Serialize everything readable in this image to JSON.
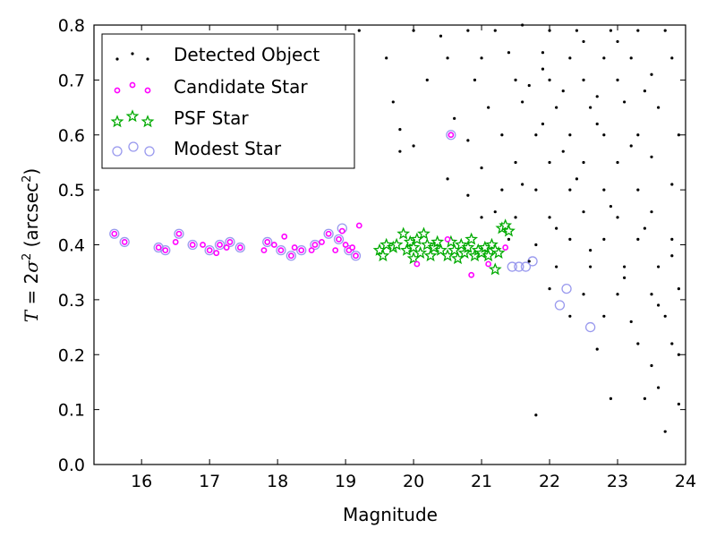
{
  "chart_data": {
    "type": "scatter",
    "xlabel": "Magnitude",
    "ylabel_parts": {
      "lhs": "T",
      "eq": " = 2",
      "sigma": "σ",
      "sup1": "2",
      "paren_open": " (arcsec",
      "sup2": "2",
      "paren_close": ")"
    },
    "xlim": [
      15.3,
      24
    ],
    "ylim": [
      0.0,
      0.8
    ],
    "xticks": [
      "16",
      "17",
      "18",
      "19",
      "20",
      "21",
      "22",
      "23",
      "24"
    ],
    "yticks": [
      "0.0",
      "0.1",
      "0.2",
      "0.3",
      "0.4",
      "0.5",
      "0.6",
      "0.7",
      "0.8"
    ],
    "legend_position": "top-left",
    "colors": {
      "detected": "#000000",
      "candidate": "#ff00ff",
      "psf": "#00aa00",
      "modest": "#9999ee"
    },
    "series": [
      {
        "name": "Detected Object",
        "marker": "dot",
        "points": [
          [
            19.2,
            0.79
          ],
          [
            20.0,
            0.79
          ],
          [
            20.4,
            0.78
          ],
          [
            20.8,
            0.79
          ],
          [
            21.2,
            0.79
          ],
          [
            21.6,
            0.8
          ],
          [
            22.0,
            0.79
          ],
          [
            22.4,
            0.79
          ],
          [
            22.9,
            0.79
          ],
          [
            23.3,
            0.79
          ],
          [
            23.7,
            0.79
          ],
          [
            19.6,
            0.74
          ],
          [
            20.5,
            0.74
          ],
          [
            21.0,
            0.74
          ],
          [
            21.4,
            0.75
          ],
          [
            21.9,
            0.75
          ],
          [
            22.3,
            0.74
          ],
          [
            22.8,
            0.74
          ],
          [
            23.2,
            0.74
          ],
          [
            23.8,
            0.74
          ],
          [
            19.7,
            0.66
          ],
          [
            20.2,
            0.7
          ],
          [
            20.9,
            0.7
          ],
          [
            21.5,
            0.7
          ],
          [
            22.0,
            0.7
          ],
          [
            22.5,
            0.7
          ],
          [
            23.0,
            0.7
          ],
          [
            23.5,
            0.71
          ],
          [
            19.8,
            0.61
          ],
          [
            20.0,
            0.58
          ],
          [
            20.6,
            0.63
          ],
          [
            21.1,
            0.65
          ],
          [
            21.6,
            0.66
          ],
          [
            22.1,
            0.65
          ],
          [
            22.6,
            0.65
          ],
          [
            23.1,
            0.66
          ],
          [
            23.6,
            0.65
          ],
          [
            19.8,
            0.57
          ],
          [
            20.8,
            0.59
          ],
          [
            21.3,
            0.6
          ],
          [
            21.8,
            0.6
          ],
          [
            22.3,
            0.6
          ],
          [
            22.8,
            0.6
          ],
          [
            23.3,
            0.6
          ],
          [
            23.9,
            0.6
          ],
          [
            20.5,
            0.52
          ],
          [
            21.0,
            0.54
          ],
          [
            21.5,
            0.55
          ],
          [
            22.0,
            0.55
          ],
          [
            22.5,
            0.55
          ],
          [
            23.0,
            0.55
          ],
          [
            23.5,
            0.56
          ],
          [
            20.8,
            0.49
          ],
          [
            21.3,
            0.5
          ],
          [
            21.8,
            0.5
          ],
          [
            22.3,
            0.5
          ],
          [
            22.8,
            0.5
          ],
          [
            23.3,
            0.5
          ],
          [
            23.8,
            0.51
          ],
          [
            21.0,
            0.45
          ],
          [
            21.5,
            0.45
          ],
          [
            22.0,
            0.45
          ],
          [
            22.5,
            0.46
          ],
          [
            23.0,
            0.45
          ],
          [
            23.5,
            0.46
          ],
          [
            21.4,
            0.41
          ],
          [
            21.8,
            0.4
          ],
          [
            22.3,
            0.41
          ],
          [
            22.8,
            0.41
          ],
          [
            23.3,
            0.41
          ],
          [
            23.8,
            0.41
          ],
          [
            21.7,
            0.37
          ],
          [
            22.1,
            0.36
          ],
          [
            22.6,
            0.36
          ],
          [
            23.1,
            0.36
          ],
          [
            23.6,
            0.36
          ],
          [
            22.0,
            0.32
          ],
          [
            22.5,
            0.31
          ],
          [
            23.0,
            0.31
          ],
          [
            23.5,
            0.31
          ],
          [
            23.9,
            0.32
          ],
          [
            22.3,
            0.27
          ],
          [
            22.8,
            0.27
          ],
          [
            23.2,
            0.26
          ],
          [
            23.7,
            0.27
          ],
          [
            23.3,
            0.22
          ],
          [
            23.8,
            0.22
          ],
          [
            23.5,
            0.18
          ],
          [
            23.9,
            0.2
          ],
          [
            23.4,
            0.12
          ],
          [
            23.6,
            0.14
          ],
          [
            23.7,
            0.06
          ],
          [
            23.9,
            0.11
          ],
          [
            22.9,
            0.12
          ],
          [
            21.8,
            0.09
          ],
          [
            22.7,
            0.21
          ],
          [
            21.9,
            0.72
          ],
          [
            22.2,
            0.68
          ],
          [
            22.7,
            0.62
          ],
          [
            23.2,
            0.58
          ],
          [
            22.4,
            0.52
          ],
          [
            22.9,
            0.47
          ],
          [
            23.4,
            0.43
          ],
          [
            22.1,
            0.43
          ],
          [
            22.6,
            0.39
          ],
          [
            23.1,
            0.34
          ],
          [
            23.6,
            0.29
          ],
          [
            21.2,
            0.46
          ],
          [
            21.6,
            0.51
          ],
          [
            22.2,
            0.57
          ],
          [
            22.7,
            0.67
          ],
          [
            23.4,
            0.68
          ],
          [
            21.7,
            0.69
          ],
          [
            23.0,
            0.77
          ],
          [
            22.5,
            0.77
          ],
          [
            21.9,
            0.62
          ],
          [
            23.8,
            0.38
          ]
        ]
      },
      {
        "name": "Candidate Star",
        "marker": "ring",
        "points": [
          [
            15.6,
            0.42
          ],
          [
            15.75,
            0.405
          ],
          [
            16.25,
            0.395
          ],
          [
            16.35,
            0.39
          ],
          [
            16.55,
            0.42
          ],
          [
            16.5,
            0.405
          ],
          [
            16.75,
            0.4
          ],
          [
            16.9,
            0.4
          ],
          [
            17.0,
            0.39
          ],
          [
            17.1,
            0.385
          ],
          [
            17.15,
            0.4
          ],
          [
            17.25,
            0.395
          ],
          [
            17.3,
            0.405
          ],
          [
            17.45,
            0.395
          ],
          [
            17.8,
            0.39
          ],
          [
            17.85,
            0.405
          ],
          [
            17.95,
            0.4
          ],
          [
            18.05,
            0.39
          ],
          [
            18.1,
            0.415
          ],
          [
            18.2,
            0.38
          ],
          [
            18.25,
            0.395
          ],
          [
            18.35,
            0.39
          ],
          [
            18.5,
            0.39
          ],
          [
            18.55,
            0.4
          ],
          [
            18.65,
            0.405
          ],
          [
            18.75,
            0.42
          ],
          [
            18.85,
            0.39
          ],
          [
            18.9,
            0.41
          ],
          [
            19.0,
            0.4
          ],
          [
            19.05,
            0.39
          ],
          [
            19.15,
            0.38
          ],
          [
            19.2,
            0.435
          ],
          [
            18.95,
            0.425
          ],
          [
            19.1,
            0.395
          ],
          [
            20.05,
            0.365
          ],
          [
            20.5,
            0.41
          ],
          [
            20.85,
            0.345
          ],
          [
            21.1,
            0.365
          ],
          [
            21.35,
            0.395
          ],
          [
            20.55,
            0.6
          ]
        ]
      },
      {
        "name": "PSF Star",
        "marker": "star",
        "points": [
          [
            19.5,
            0.39
          ],
          [
            19.55,
            0.38
          ],
          [
            19.6,
            0.4
          ],
          [
            19.7,
            0.395
          ],
          [
            19.75,
            0.4
          ],
          [
            19.9,
            0.39
          ],
          [
            19.95,
            0.405
          ],
          [
            20.0,
            0.395
          ],
          [
            20.05,
            0.41
          ],
          [
            20.1,
            0.385
          ],
          [
            20.15,
            0.42
          ],
          [
            20.2,
            0.4
          ],
          [
            20.25,
            0.38
          ],
          [
            20.3,
            0.395
          ],
          [
            20.4,
            0.39
          ],
          [
            20.5,
            0.38
          ],
          [
            20.55,
            0.405
          ],
          [
            20.6,
            0.39
          ],
          [
            20.65,
            0.375
          ],
          [
            20.7,
            0.4
          ],
          [
            20.75,
            0.385
          ],
          [
            20.8,
            0.395
          ],
          [
            20.85,
            0.41
          ],
          [
            20.9,
            0.38
          ],
          [
            20.95,
            0.39
          ],
          [
            21.0,
            0.385
          ],
          [
            21.05,
            0.395
          ],
          [
            21.1,
            0.38
          ],
          [
            21.15,
            0.4
          ],
          [
            21.2,
            0.39
          ],
          [
            21.25,
            0.385
          ],
          [
            21.3,
            0.43
          ],
          [
            21.35,
            0.435
          ],
          [
            21.4,
            0.425
          ],
          [
            21.2,
            0.355
          ],
          [
            20.0,
            0.375
          ],
          [
            19.85,
            0.42
          ],
          [
            20.35,
            0.405
          ]
        ]
      },
      {
        "name": "Modest Star",
        "marker": "circle",
        "points": [
          [
            15.6,
            0.42
          ],
          [
            15.75,
            0.405
          ],
          [
            16.25,
            0.395
          ],
          [
            16.35,
            0.39
          ],
          [
            16.55,
            0.42
          ],
          [
            16.75,
            0.4
          ],
          [
            17.0,
            0.39
          ],
          [
            17.15,
            0.4
          ],
          [
            17.3,
            0.405
          ],
          [
            17.45,
            0.395
          ],
          [
            17.85,
            0.405
          ],
          [
            18.05,
            0.39
          ],
          [
            18.2,
            0.38
          ],
          [
            18.35,
            0.39
          ],
          [
            18.55,
            0.4
          ],
          [
            18.75,
            0.42
          ],
          [
            18.9,
            0.41
          ],
          [
            19.05,
            0.39
          ],
          [
            19.15,
            0.38
          ],
          [
            18.95,
            0.43
          ],
          [
            20.55,
            0.6
          ],
          [
            21.45,
            0.36
          ],
          [
            21.55,
            0.36
          ],
          [
            21.65,
            0.36
          ],
          [
            21.75,
            0.37
          ],
          [
            22.15,
            0.29
          ],
          [
            22.25,
            0.32
          ],
          [
            22.6,
            0.25
          ]
        ]
      }
    ]
  }
}
